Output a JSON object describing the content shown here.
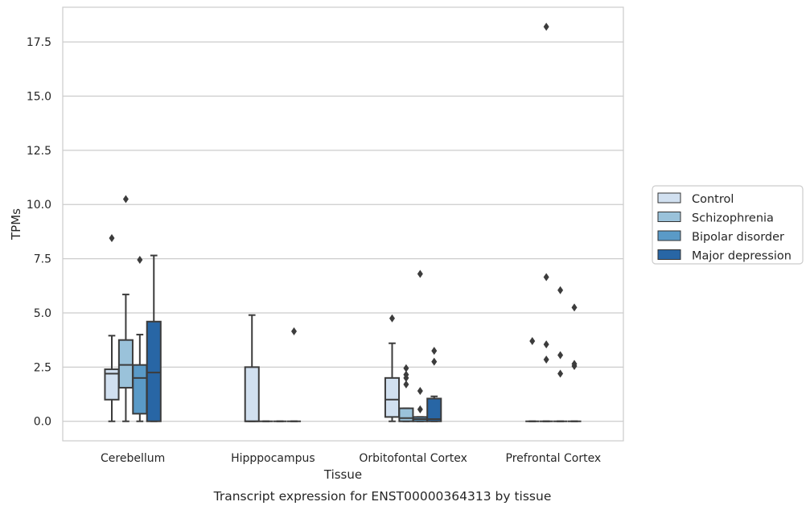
{
  "caption": "Transcript expression for ENST00000364313 by tissue",
  "chart_data": {
    "type": "box",
    "title": "",
    "xlabel": "Tissue",
    "ylabel": "TPMs",
    "ylim": [
      -0.9,
      19.1
    ],
    "yticks": [
      "0.0",
      "2.5",
      "5.0",
      "7.5",
      "10.0",
      "12.5",
      "15.0",
      "17.5"
    ],
    "ytick_values": [
      0,
      2.5,
      5,
      7.5,
      10,
      12.5,
      15,
      17.5
    ],
    "grid": "horizontal",
    "legend_position": "right",
    "categories": [
      "Cerebellum",
      "Hipppocampus",
      "Orbitofontal Cortex",
      "Prefrontal Cortex"
    ],
    "series": [
      {
        "name": "Control",
        "color": "#d1e0f0",
        "boxes": [
          {
            "whislo": 0.0,
            "q1": 1.0,
            "med": 2.2,
            "q3": 2.4,
            "whishi": 3.95,
            "fliers": [
              8.45
            ]
          },
          {
            "whislo": 0.0,
            "q1": 0.0,
            "med": 0.0,
            "q3": 2.5,
            "whishi": 4.9,
            "fliers": []
          },
          {
            "whislo": 0.0,
            "q1": 0.2,
            "med": 1.0,
            "q3": 2.0,
            "whishi": 3.6,
            "fliers": [
              4.75
            ]
          },
          {
            "whislo": 0.0,
            "q1": 0.0,
            "med": 0.0,
            "q3": 0.0,
            "whishi": 0.0,
            "fliers": [
              3.7
            ]
          }
        ]
      },
      {
        "name": "Schizophrenia",
        "color": "#9ac2da",
        "boxes": [
          {
            "whislo": 0.0,
            "q1": 1.55,
            "med": 2.6,
            "q3": 3.75,
            "whishi": 5.85,
            "fliers": [
              10.25
            ]
          },
          {
            "whislo": 0.0,
            "q1": 0.0,
            "med": 0.0,
            "q3": 0.0,
            "whishi": 0.0,
            "fliers": []
          },
          {
            "whislo": 0.0,
            "q1": 0.0,
            "med": 0.15,
            "q3": 0.6,
            "whishi": 0.6,
            "fliers": [
              1.7,
              2.0,
              2.15,
              2.45
            ]
          },
          {
            "whislo": 0.0,
            "q1": 0.0,
            "med": 0.0,
            "q3": 0.0,
            "whishi": 0.0,
            "fliers": [
              2.85,
              3.55,
              6.65,
              18.2
            ]
          }
        ]
      },
      {
        "name": "Bipolar disorder",
        "color": "#5a9ac7",
        "boxes": [
          {
            "whislo": 0.0,
            "q1": 0.35,
            "med": 2.0,
            "q3": 2.6,
            "whishi": 4.0,
            "fliers": [
              7.45
            ]
          },
          {
            "whislo": 0.0,
            "q1": 0.0,
            "med": 0.0,
            "q3": 0.0,
            "whishi": 0.0,
            "fliers": []
          },
          {
            "whislo": 0.0,
            "q1": 0.0,
            "med": 0.1,
            "q3": 0.2,
            "whishi": 0.2,
            "fliers": [
              0.55,
              1.4,
              6.8
            ]
          },
          {
            "whislo": 0.0,
            "q1": 0.0,
            "med": 0.0,
            "q3": 0.0,
            "whishi": 0.0,
            "fliers": [
              2.2,
              3.05,
              6.05
            ]
          }
        ]
      },
      {
        "name": "Major depression",
        "color": "#2866a5",
        "boxes": [
          {
            "whislo": 0.0,
            "q1": 0.0,
            "med": 2.25,
            "q3": 4.6,
            "whishi": 7.65,
            "fliers": []
          },
          {
            "whislo": 0.0,
            "q1": 0.0,
            "med": 0.0,
            "q3": 0.0,
            "whishi": 0.0,
            "fliers": [
              4.15
            ]
          },
          {
            "whislo": 0.0,
            "q1": 0.0,
            "med": 0.1,
            "q3": 1.05,
            "whishi": 1.15,
            "fliers": [
              2.75,
              3.25
            ]
          },
          {
            "whislo": 0.0,
            "q1": 0.0,
            "med": 0.0,
            "q3": 0.0,
            "whishi": 0.0,
            "fliers": [
              2.55,
              2.65,
              5.25
            ]
          }
        ]
      }
    ]
  }
}
